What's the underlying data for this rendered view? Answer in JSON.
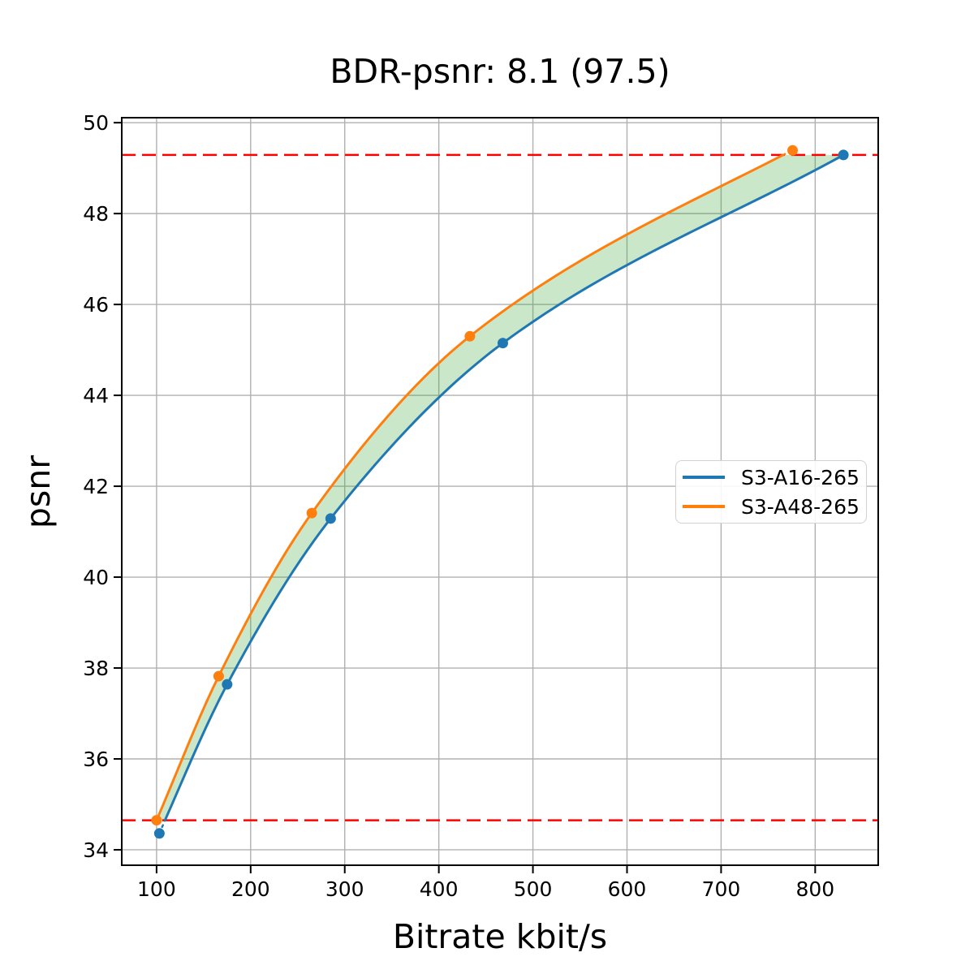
{
  "chart_data": {
    "type": "line",
    "title": "BDR-psnr: 8.1 (97.5)",
    "xlabel": "Bitrate kbit/s",
    "ylabel": "psnr",
    "x_ticks": [
      100,
      200,
      300,
      400,
      500,
      600,
      700,
      800
    ],
    "y_ticks": [
      34,
      36,
      38,
      40,
      42,
      44,
      46,
      48,
      50
    ],
    "xlim": [
      63,
      867
    ],
    "ylim": [
      33.66,
      50.11
    ],
    "grid": true,
    "grid_color": "#b0b0b0",
    "legend_position": "center-right",
    "series": [
      {
        "name": "S3-A16-265",
        "color": "#1f77b4",
        "points": [
          [
            103,
            34.36
          ],
          [
            175,
            37.64
          ],
          [
            285,
            41.29
          ],
          [
            468,
            45.15
          ],
          [
            830,
            49.29
          ]
        ],
        "curve_anchors": [
          [
            103,
            34.36
          ],
          [
            109,
            34.65
          ],
          [
            175,
            37.64
          ],
          [
            285,
            41.29
          ],
          [
            468,
            45.15
          ],
          [
            830,
            49.29
          ]
        ],
        "solid_range": [
          109,
          830
        ],
        "dotted_ranges": [
          [
            103,
            109
          ]
        ]
      },
      {
        "name": "S3-A48-265",
        "color": "#ff7f0e",
        "points": [
          [
            100,
            34.65
          ],
          [
            166,
            37.82
          ],
          [
            265,
            41.41
          ],
          [
            433,
            45.3
          ],
          [
            776,
            49.39
          ]
        ],
        "curve_anchors": [
          [
            100,
            34.65
          ],
          [
            166,
            37.82
          ],
          [
            265,
            41.41
          ],
          [
            433,
            45.3
          ],
          [
            766,
            49.29
          ],
          [
            776,
            49.39
          ]
        ],
        "solid_range": [
          100,
          766
        ],
        "dotted_ranges": [
          [
            766,
            776
          ]
        ]
      }
    ],
    "overlap_lines": {
      "style": "dashed",
      "color": "#ff0000",
      "psnr_low": 34.65,
      "psnr_high": 49.29
    },
    "fill_between": {
      "color": "rgba(44,160,44,0.25)",
      "upper_series": "S3-A48-265",
      "lower_series": "S3-A16-265"
    }
  }
}
